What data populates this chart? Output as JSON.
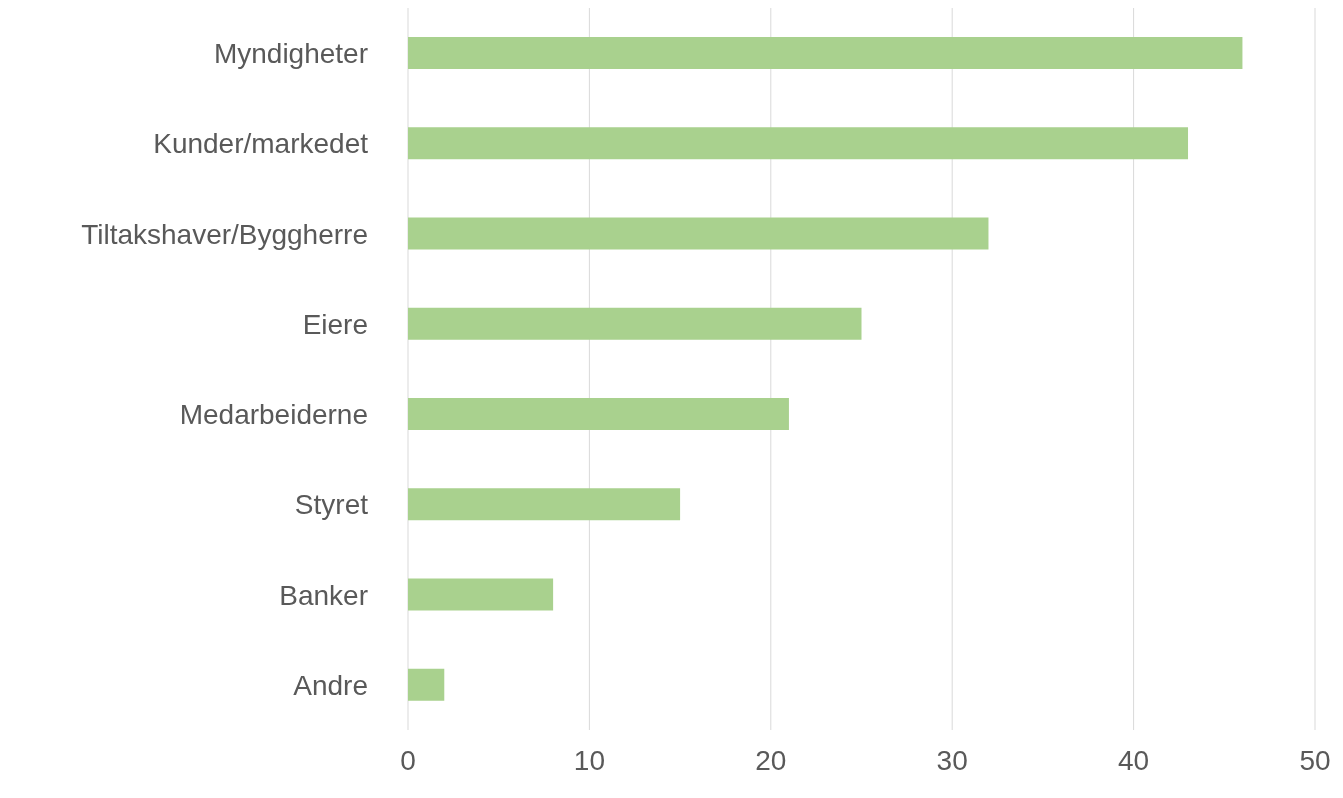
{
  "chart_data": {
    "type": "bar",
    "orientation": "horizontal",
    "categories": [
      "Myndigheter",
      "Kunder/markedet",
      "Tiltakshaver/Byggherre",
      "Eiere",
      "Medarbeiderne",
      "Styret",
      "Banker",
      "Andre"
    ],
    "values": [
      46,
      43,
      32,
      25,
      21,
      15,
      8,
      2
    ],
    "color": "#a9d18e",
    "xlim": [
      0,
      50
    ],
    "xticks": [
      0,
      10,
      20,
      30,
      40,
      50
    ],
    "grid": "x"
  }
}
